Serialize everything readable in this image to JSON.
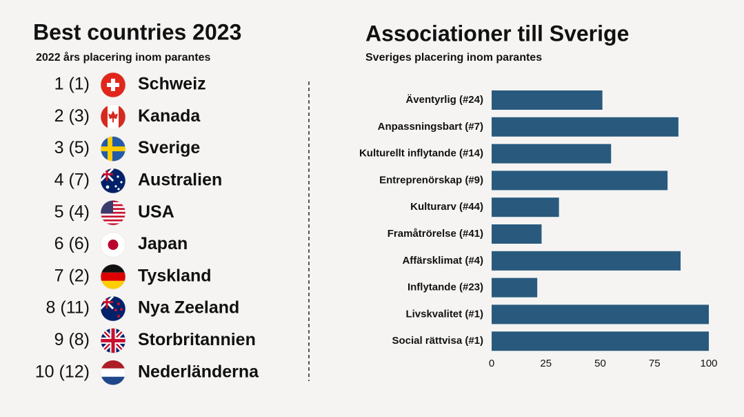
{
  "ranking": {
    "title": "Best countries 2023",
    "subtitle": "2022 års placering inom parantes",
    "rows": [
      {
        "rank": "1 (1)",
        "country": "Schweiz"
      },
      {
        "rank": "2 (3)",
        "country": "Kanada"
      },
      {
        "rank": "3 (5)",
        "country": "Sverige"
      },
      {
        "rank": "4 (7)",
        "country": "Australien"
      },
      {
        "rank": "5 (4)",
        "country": "USA"
      },
      {
        "rank": "6 (6)",
        "country": "Japan"
      },
      {
        "rank": "7 (2)",
        "country": "Tyskland"
      },
      {
        "rank": "8 (11)",
        "country": "Nya Zeeland"
      },
      {
        "rank": "9 (8)",
        "country": "Storbritannien"
      },
      {
        "rank": "10 (12)",
        "country": "Nederländerna"
      }
    ]
  },
  "chart_data": {
    "type": "hbar",
    "title": "Associationer till Sverige",
    "subtitle": "Sveriges placering inom parantes",
    "categories": [
      "Äventyrlig (#24)",
      "Anpassningsbart (#7)",
      "Kulturellt inflytande (#14)",
      "Entreprenörskap (#9)",
      "Kulturarv (#44)",
      "Framåtrörelse (#41)",
      "Affärsklimat (#4)",
      "Inflytande (#23)",
      "Livskvalitet (#1)",
      "Social rättvisa (#1)"
    ],
    "values": [
      51,
      86,
      55,
      81,
      31,
      23,
      87,
      21,
      100,
      100
    ],
    "color": "#295a7e",
    "xlim": [
      0,
      100
    ],
    "xticks": [
      0,
      25,
      50,
      75,
      100
    ],
    "grid": false
  }
}
